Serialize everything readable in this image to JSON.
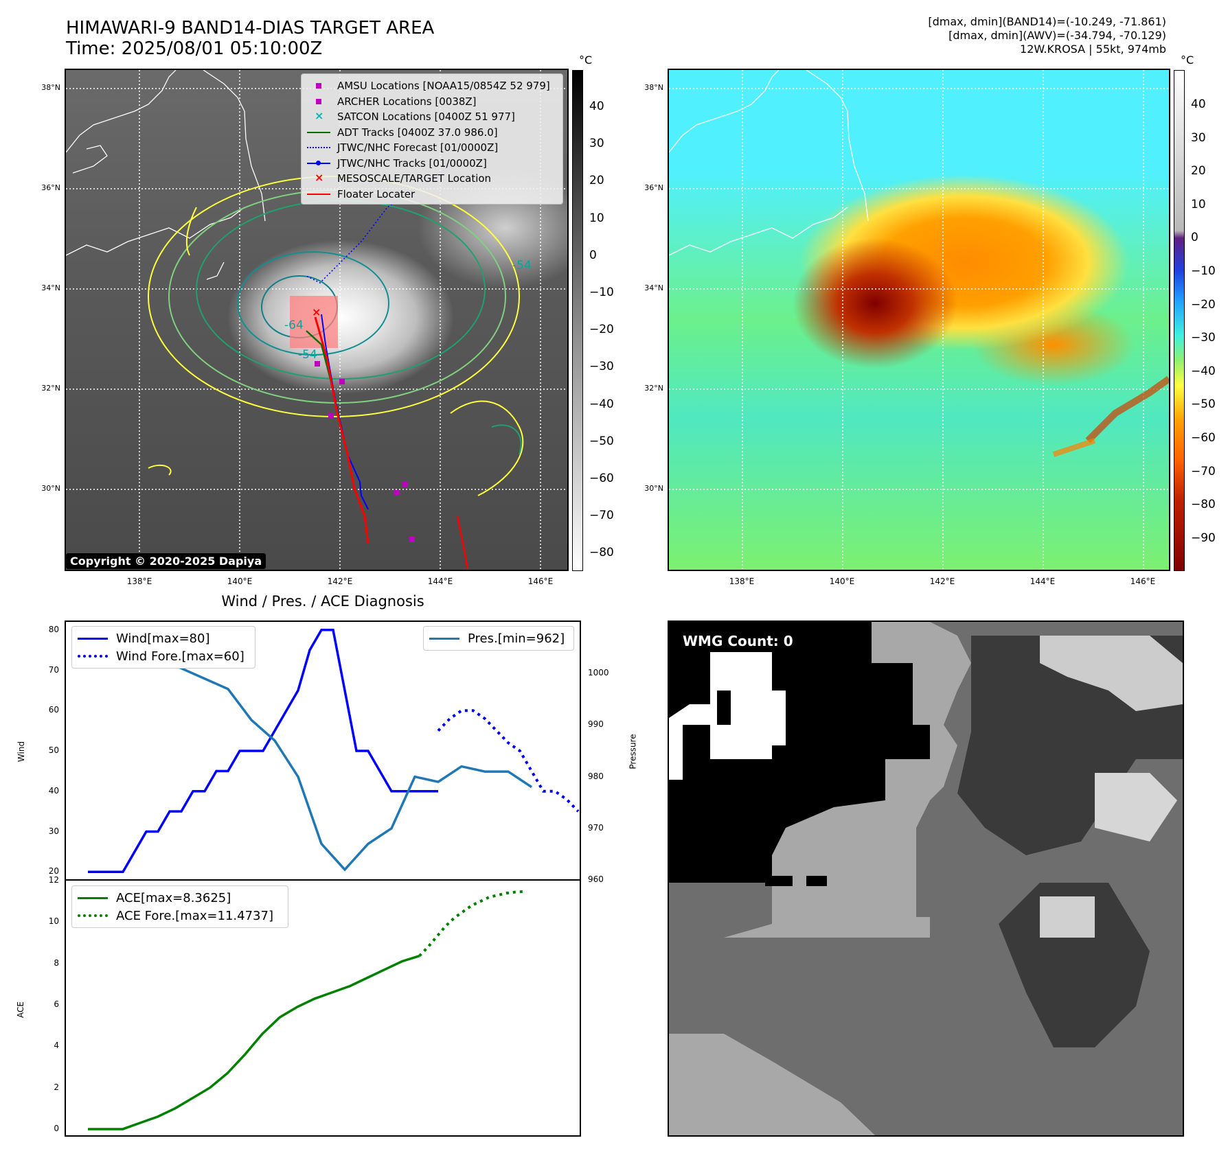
{
  "header": {
    "title_line1": "HIMAWARI-9 BAND14-DIAS TARGET AREA",
    "title_line2": "Time: 2025/08/01 05:10:00Z",
    "info_line1": "[dmax, dmin](BAND14)=(-10.249, -71.861)",
    "info_line2": "[dmax, dmin](AWV)=(-34.794, -70.129)",
    "info_line3": "12W.KROSA | 55kt, 974mb"
  },
  "map": {
    "lat_ticks": [
      "38°N",
      "36°N",
      "34°N",
      "32°N",
      "30°N"
    ],
    "lon_ticks": [
      "138°E",
      "140°E",
      "142°E",
      "144°E",
      "146°E"
    ],
    "copyright": "Copyright © 2020-2025 Dapiya",
    "contour_labels": [
      "-64",
      "-54",
      "-54"
    ],
    "legend": [
      {
        "label": "AMSU Locations [NOAA15/0854Z 52 979]",
        "symbol": "square",
        "color": "#c000c0"
      },
      {
        "label": "ARCHER Locations [0038Z]",
        "symbol": "square",
        "color": "#c000c0"
      },
      {
        "label": "SATCON Locations [0400Z 51 977]",
        "symbol": "x",
        "color": "#00b8b8"
      },
      {
        "label": "ADT Tracks [0400Z 37.0 986.0]",
        "symbol": "line",
        "color": "#007000"
      },
      {
        "label": "JTWC/NHC Forecast [01/0000Z]",
        "symbol": "dotted",
        "color": "#0000ff"
      },
      {
        "label": "JTWC/NHC Tracks [01/0000Z]",
        "symbol": "dotline",
        "color": "#0000ff"
      },
      {
        "label": "MESOSCALE/TARGET Location",
        "symbol": "x",
        "color": "#ff0000"
      },
      {
        "label": "Floater Locater",
        "symbol": "line",
        "color": "#ff0000"
      }
    ]
  },
  "colorbar_ir": {
    "unit": "°C",
    "ticks": [
      "40",
      "30",
      "20",
      "10",
      "0",
      "−10",
      "−20",
      "−30",
      "−40",
      "−50",
      "−60",
      "−70",
      "−80"
    ]
  },
  "colorbar_wv": {
    "unit": "°C",
    "ticks": [
      "40",
      "30",
      "20",
      "10",
      "0",
      "−10",
      "−20",
      "−30",
      "−40",
      "−50",
      "−60",
      "−70",
      "−80",
      "−90"
    ]
  },
  "wmg": {
    "label": "WMG Count: 0"
  },
  "chart_data": [
    {
      "type": "line",
      "title": "Wind / Pres. / ACE Diagnosis",
      "ylabel": "Wind",
      "ylim": [
        18,
        82
      ],
      "yticks": [
        "80",
        "70",
        "60",
        "50",
        "40",
        "30",
        "20"
      ],
      "y2label": "Pressure",
      "y2lim": [
        960,
        1010
      ],
      "y2ticks": [
        "1000",
        "990",
        "980",
        "970",
        "960"
      ],
      "legend_left": [
        "Wind[max=80]",
        "Wind Fore.[max=60]"
      ],
      "legend_right": [
        "Pres.[min=962]"
      ],
      "series": [
        {
          "name": "Wind[max=80]",
          "color": "#0000ff",
          "style": "solid",
          "axis": "left",
          "x": [
            0,
            1,
            2,
            3,
            4,
            5,
            6,
            7,
            8,
            9,
            10,
            11,
            12,
            13,
            14,
            15,
            16,
            17,
            18,
            19,
            20,
            21,
            22,
            23,
            24,
            25,
            26,
            27,
            28,
            29,
            30
          ],
          "values": [
            20,
            20,
            20,
            20,
            25,
            30,
            30,
            35,
            35,
            40,
            40,
            45,
            45,
            50,
            50,
            50,
            55,
            60,
            65,
            75,
            80,
            80,
            65,
            50,
            50,
            45,
            40,
            40,
            40,
            40,
            40
          ]
        },
        {
          "name": "Wind Fore.[max=60]",
          "color": "#0000ff",
          "style": "dotted",
          "axis": "left",
          "x": [
            30,
            31,
            32,
            33,
            34,
            35,
            36,
            37,
            38,
            39,
            40,
            41,
            42
          ],
          "values": [
            55,
            58,
            60,
            60,
            58,
            55,
            52,
            50,
            45,
            40,
            40,
            38,
            35
          ]
        },
        {
          "name": "Pres.[min=962]",
          "color": "#1f77b4",
          "style": "solid",
          "axis": "right",
          "x": [
            0,
            2,
            4,
            6,
            8,
            10,
            12,
            14,
            16,
            18,
            20,
            22,
            24,
            26,
            28,
            30,
            32,
            34,
            36,
            38
          ],
          "values": [
            1008,
            1008,
            1004,
            1003,
            1001,
            999,
            997,
            991,
            987,
            980,
            967,
            962,
            967,
            970,
            980,
            979,
            982,
            981,
            981,
            978
          ]
        }
      ]
    },
    {
      "type": "line",
      "ylabel": "ACE",
      "ylim": [
        -0.3,
        12
      ],
      "yticks": [
        "12",
        "10",
        "8",
        "6",
        "4",
        "2",
        "0"
      ],
      "legend": [
        "ACE[max=8.3625]",
        "ACE Fore.[max=11.4737]"
      ],
      "series": [
        {
          "name": "ACE[max=8.3625]",
          "color": "#008000",
          "style": "solid",
          "x": [
            0,
            2,
            4,
            6,
            8,
            10,
            12,
            14,
            16,
            18,
            20,
            22,
            24,
            26,
            28,
            30,
            32,
            34,
            36,
            38
          ],
          "values": [
            0,
            0,
            0,
            0.3,
            0.6,
            1.0,
            1.5,
            2.0,
            2.7,
            3.6,
            4.6,
            5.4,
            5.9,
            6.3,
            6.6,
            6.9,
            7.3,
            7.7,
            8.1,
            8.3625
          ]
        },
        {
          "name": "ACE Fore.[max=11.4737]",
          "color": "#008000",
          "style": "dotted",
          "x": [
            38,
            39,
            40,
            41,
            42,
            43,
            44,
            45,
            46,
            47,
            48,
            49,
            50
          ],
          "values": [
            8.3625,
            8.8,
            9.3,
            9.8,
            10.2,
            10.5,
            10.8,
            11.0,
            11.2,
            11.3,
            11.4,
            11.45,
            11.4737
          ]
        }
      ]
    }
  ]
}
